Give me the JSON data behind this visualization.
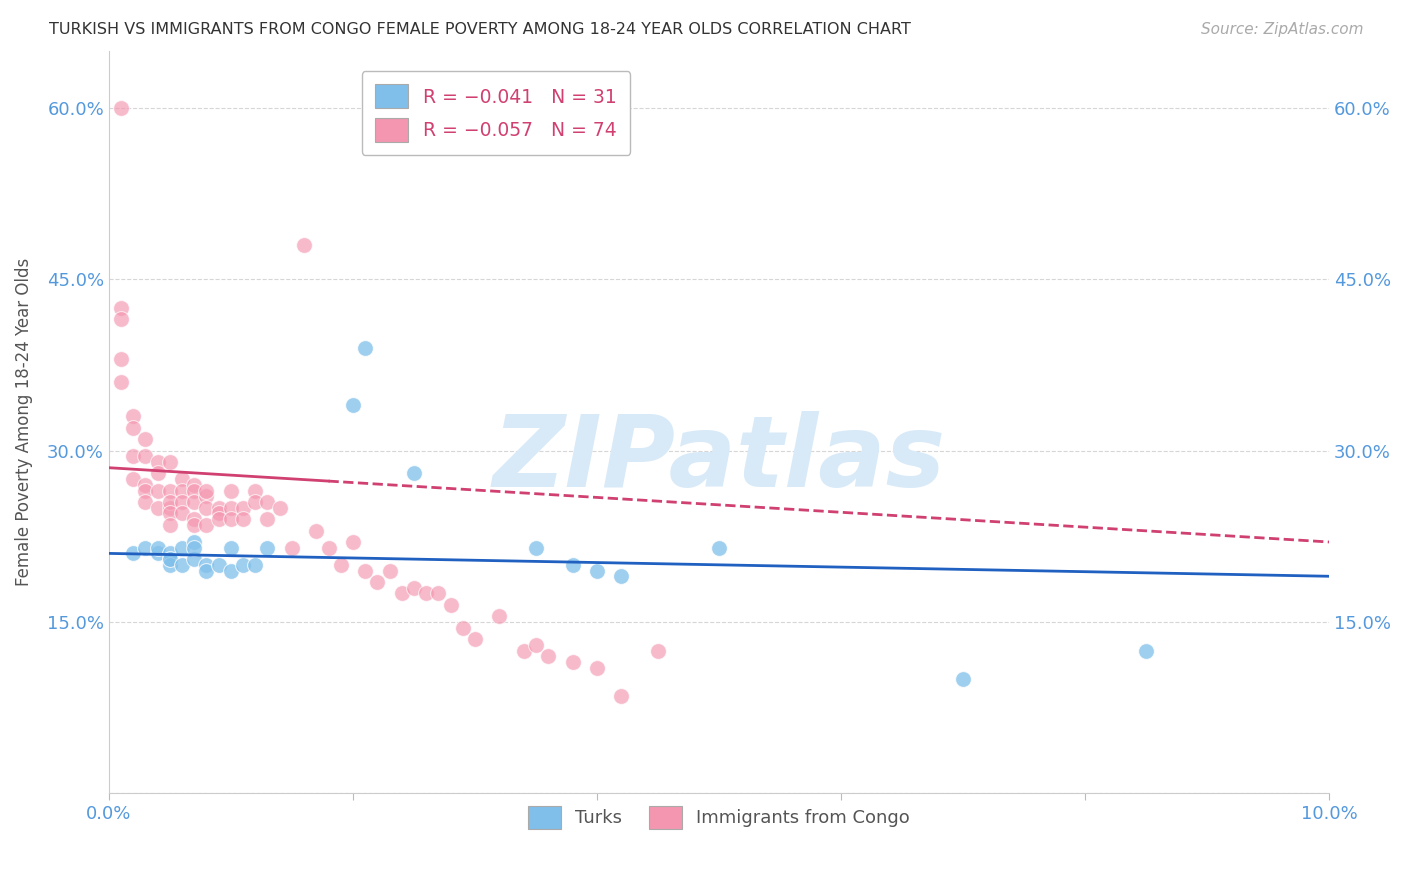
{
  "title": "TURKISH VS IMMIGRANTS FROM CONGO FEMALE POVERTY AMONG 18-24 YEAR OLDS CORRELATION CHART",
  "source": "Source: ZipAtlas.com",
  "ylabel": "Female Poverty Among 18-24 Year Olds",
  "xlim": [
    0.0,
    0.1
  ],
  "ylim": [
    0.0,
    0.65
  ],
  "xticks": [
    0.0,
    0.02,
    0.04,
    0.06,
    0.08,
    0.1
  ],
  "yticks": [
    0.0,
    0.15,
    0.3,
    0.45,
    0.6
  ],
  "watermark": "ZIPatlas",
  "color_turks": "#7fbfea",
  "color_congo": "#f496b0",
  "color_line_turks": "#2060c0",
  "color_line_congo": "#d04070",
  "color_axis_labels": "#5599dd",
  "color_title": "#333333",
  "color_source": "#aaaaaa",
  "color_watermark": "#d8eaf8",
  "background_color": "#ffffff",
  "turks_x": [
    0.002,
    0.003,
    0.004,
    0.004,
    0.005,
    0.005,
    0.005,
    0.005,
    0.006,
    0.006,
    0.007,
    0.007,
    0.007,
    0.008,
    0.008,
    0.009,
    0.01,
    0.01,
    0.011,
    0.012,
    0.013,
    0.02,
    0.021,
    0.025,
    0.035,
    0.038,
    0.04,
    0.042,
    0.05,
    0.07,
    0.085
  ],
  "turks_y": [
    0.21,
    0.215,
    0.21,
    0.215,
    0.205,
    0.21,
    0.2,
    0.205,
    0.2,
    0.215,
    0.22,
    0.205,
    0.215,
    0.2,
    0.195,
    0.2,
    0.195,
    0.215,
    0.2,
    0.2,
    0.215,
    0.34,
    0.39,
    0.28,
    0.215,
    0.2,
    0.195,
    0.19,
    0.215,
    0.1,
    0.125
  ],
  "congo_x": [
    0.001,
    0.001,
    0.001,
    0.001,
    0.001,
    0.002,
    0.002,
    0.002,
    0.002,
    0.003,
    0.003,
    0.003,
    0.003,
    0.003,
    0.004,
    0.004,
    0.004,
    0.004,
    0.005,
    0.005,
    0.005,
    0.005,
    0.005,
    0.005,
    0.006,
    0.006,
    0.006,
    0.006,
    0.007,
    0.007,
    0.007,
    0.007,
    0.007,
    0.008,
    0.008,
    0.008,
    0.008,
    0.009,
    0.009,
    0.009,
    0.01,
    0.01,
    0.01,
    0.011,
    0.011,
    0.012,
    0.012,
    0.013,
    0.013,
    0.014,
    0.015,
    0.016,
    0.017,
    0.018,
    0.019,
    0.02,
    0.021,
    0.022,
    0.023,
    0.024,
    0.025,
    0.026,
    0.027,
    0.028,
    0.029,
    0.03,
    0.032,
    0.034,
    0.035,
    0.036,
    0.038,
    0.04,
    0.042,
    0.045
  ],
  "congo_y": [
    0.6,
    0.425,
    0.415,
    0.38,
    0.36,
    0.33,
    0.32,
    0.295,
    0.275,
    0.31,
    0.295,
    0.27,
    0.265,
    0.255,
    0.29,
    0.28,
    0.265,
    0.25,
    0.29,
    0.265,
    0.25,
    0.255,
    0.245,
    0.235,
    0.275,
    0.265,
    0.255,
    0.245,
    0.27,
    0.265,
    0.255,
    0.24,
    0.235,
    0.26,
    0.265,
    0.25,
    0.235,
    0.25,
    0.245,
    0.24,
    0.265,
    0.25,
    0.24,
    0.25,
    0.24,
    0.265,
    0.255,
    0.255,
    0.24,
    0.25,
    0.215,
    0.48,
    0.23,
    0.215,
    0.2,
    0.22,
    0.195,
    0.185,
    0.195,
    0.175,
    0.18,
    0.175,
    0.175,
    0.165,
    0.145,
    0.135,
    0.155,
    0.125,
    0.13,
    0.12,
    0.115,
    0.11,
    0.085,
    0.125
  ],
  "line_turks_x0": 0.0,
  "line_turks_y0": 0.21,
  "line_turks_x1": 0.1,
  "line_turks_y1": 0.19,
  "line_congo_x0": 0.0,
  "line_congo_y0": 0.285,
  "line_congo_x1": 0.1,
  "line_congo_y1": 0.22
}
